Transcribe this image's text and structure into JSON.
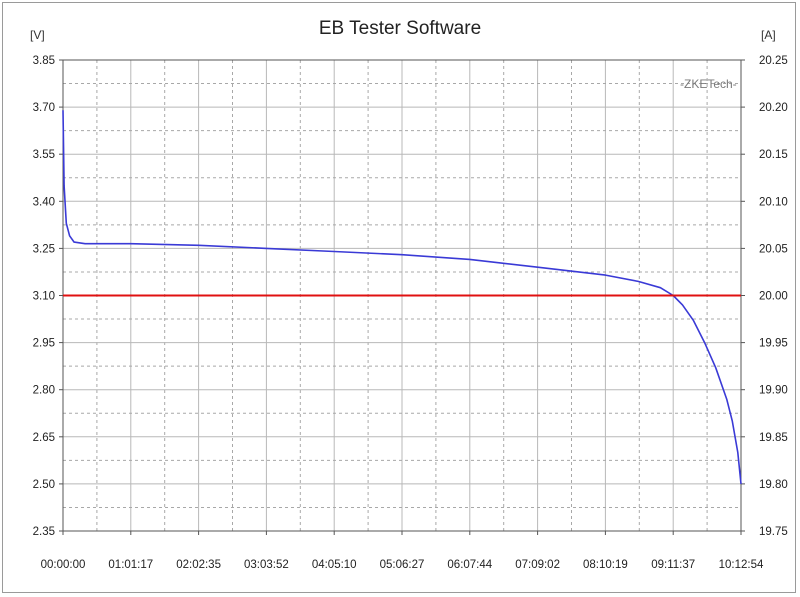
{
  "chart_data": {
    "type": "line",
    "title": "EB Tester Software",
    "y_left_unit": "[V]",
    "y_right_unit": "[A]",
    "watermark": "-ZKETech-",
    "ylim_left": [
      2.35,
      3.85
    ],
    "ylim_right": [
      19.75,
      20.25
    ],
    "left_ticks": [
      "3.85",
      "3.70",
      "3.55",
      "3.40",
      "3.25",
      "3.10",
      "2.95",
      "2.80",
      "2.65",
      "2.50",
      "2.35"
    ],
    "right_ticks": [
      "20.25",
      "20.20",
      "20.15",
      "20.10",
      "20.05",
      "20.00",
      "19.95",
      "19.90",
      "19.85",
      "19.80",
      "19.75"
    ],
    "x_ticks": [
      "00:00:00",
      "01:01:17",
      "02:02:35",
      "03:03:52",
      "04:05:10",
      "05:06:27",
      "06:07:44",
      "07:09:02",
      "08:10:19",
      "09:11:37",
      "10:12:54"
    ],
    "grid": true,
    "series": [
      {
        "axis": "left",
        "color": "#3a3ad6",
        "x": [
          "00:00:00",
          "00:01:00",
          "00:03:00",
          "00:06:00",
          "00:10:00",
          "00:20:00",
          "01:01:17",
          "02:02:35",
          "03:03:52",
          "04:05:10",
          "05:06:27",
          "06:07:44",
          "07:09:02",
          "08:10:19",
          "08:40:00",
          "09:00:00",
          "09:11:37",
          "09:20:00",
          "09:30:00",
          "09:40:00",
          "09:50:00",
          "10:00:00",
          "10:05:00",
          "10:10:00",
          "10:12:54"
        ],
        "y": [
          3.69,
          3.45,
          3.33,
          3.29,
          3.27,
          3.265,
          3.265,
          3.26,
          3.25,
          3.24,
          3.23,
          3.215,
          3.19,
          3.165,
          3.145,
          3.125,
          3.1,
          3.07,
          3.02,
          2.95,
          2.87,
          2.77,
          2.7,
          2.6,
          2.5
        ]
      },
      {
        "axis": "right",
        "color": "#e01010",
        "x": [
          "00:00:00",
          "10:12:54"
        ],
        "y": [
          20.0,
          20.0
        ]
      }
    ]
  }
}
